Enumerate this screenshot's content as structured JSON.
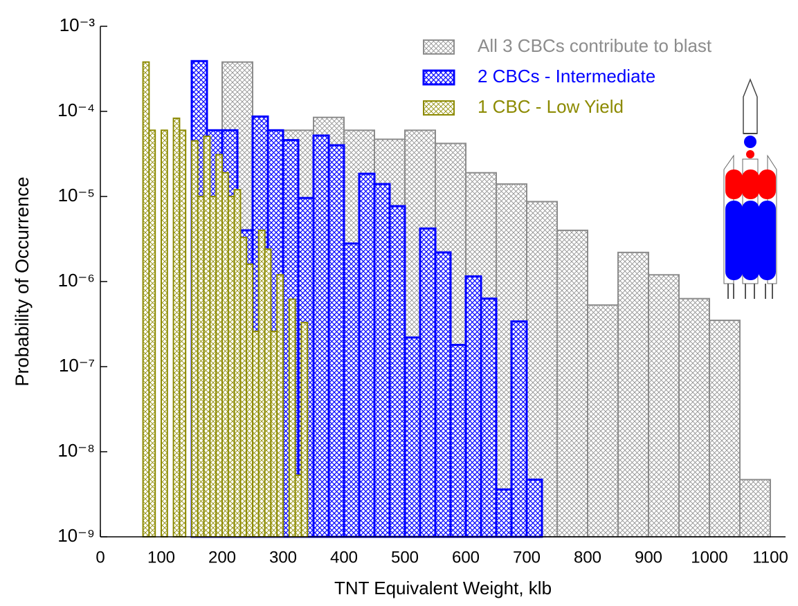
{
  "chart_data": {
    "type": "histogram",
    "xlabel": "TNT Equivalent Weight, klb",
    "ylabel": "Probability of Occurrence",
    "log_y": true,
    "xlim": [
      0,
      1125
    ],
    "ylim": [
      1e-09,
      0.001
    ],
    "xticks": [
      0,
      100,
      200,
      300,
      400,
      500,
      600,
      700,
      800,
      900,
      1000,
      1100
    ],
    "yticks": [
      {
        "value": 1e-09,
        "label": "10⁻⁹"
      },
      {
        "value": 1e-08,
        "label": "10⁻⁸"
      },
      {
        "value": 1e-07,
        "label": "10⁻⁷"
      },
      {
        "value": 1e-06,
        "label": "10⁻⁶"
      },
      {
        "value": 1e-05,
        "label": "10⁻⁵"
      },
      {
        "value": 0.0001,
        "label": "10⁻⁴"
      },
      {
        "value": 0.001,
        "label": "10⁻³"
      }
    ],
    "legend_position": "upper right",
    "series": [
      {
        "name": "All 3 CBCs contribute to blast",
        "color": "#8c8c8c",
        "bins": [
          200,
          250,
          300,
          350,
          400,
          450,
          500,
          550,
          600,
          650,
          700,
          750,
          800,
          850,
          900,
          950,
          1000,
          1050,
          1100
        ],
        "values": [
          0.00038,
          6e-05,
          6e-05,
          8.5e-05,
          6e-05,
          4.7e-05,
          6e-05,
          4.2e-05,
          1.9e-05,
          1.4e-05,
          8.7e-06,
          4e-06,
          5.3e-07,
          2.2e-06,
          1.2e-06,
          6.3e-07,
          3.5e-07,
          4.7e-09
        ]
      },
      {
        "name": "2 CBCs - Intermediate",
        "color": "#0000ff",
        "bins": [
          150,
          175,
          200,
          225,
          250,
          275,
          300,
          325,
          350,
          375,
          400,
          425,
          450,
          475,
          500,
          525,
          550,
          575,
          600,
          625,
          650,
          675,
          700,
          725
        ],
        "values": [
          0.00039,
          6e-05,
          6e-05,
          4e-06,
          8.7e-05,
          6e-05,
          4.6e-05,
          9.6e-06,
          5.2e-05,
          4e-05,
          2.8e-06,
          1.85e-05,
          1.4e-05,
          7.7e-06,
          2.2e-07,
          4.2e-06,
          2.2e-06,
          1.8e-07,
          1.15e-06,
          6.3e-07,
          3.6e-09,
          3.4e-07,
          4.7e-09
        ]
      },
      {
        "name": "1 CBC - Low Yield",
        "color": "#8c8a00",
        "bins": [
          70,
          80,
          90,
          100,
          110,
          120,
          130,
          140,
          150,
          160,
          170,
          180,
          190,
          200,
          210,
          220,
          230,
          240,
          250,
          260,
          270,
          280,
          290,
          300,
          310,
          320,
          330,
          340
        ],
        "values": [
          0.00038,
          6e-05,
          null,
          6e-05,
          null,
          8.3e-05,
          6e-05,
          null,
          4.5e-05,
          1e-05,
          5.1e-05,
          1e-05,
          3.1e-05,
          1.9e-05,
          1e-05,
          1.2e-05,
          3.3e-06,
          1.6e-06,
          2.6e-07,
          4e-06,
          2.4e-06,
          2.6e-07,
          1.2e-06,
          null,
          6.2e-07,
          5.3e-09,
          3.3e-07
        ]
      }
    ]
  }
}
